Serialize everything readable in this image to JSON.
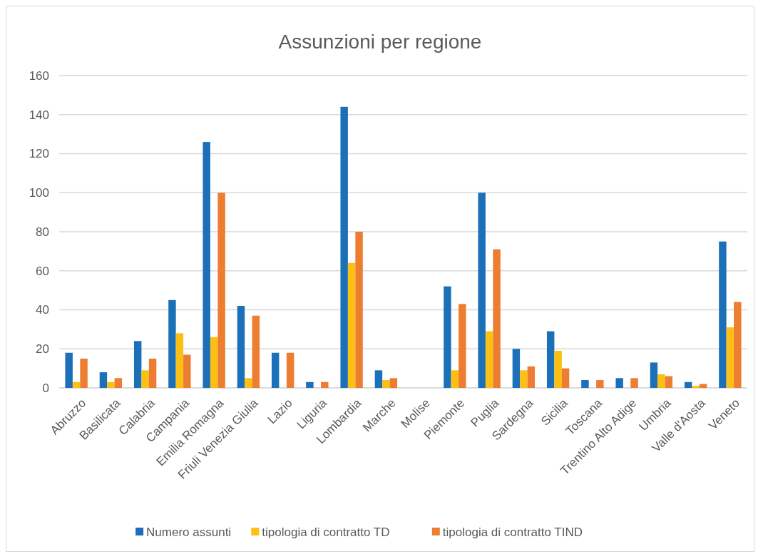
{
  "chart_data": {
    "type": "bar",
    "title": "Assunzioni per regione",
    "categories": [
      "Abruzzo",
      "Basilicata",
      "Calabria",
      "Campania",
      "Emilia Romagna",
      "Friuli Venezia Giulia",
      "Lazio",
      "Liguria",
      "Lombardia",
      "Marche",
      "Molise",
      "Piemonte",
      "Puglia",
      "Sardegna",
      "Sicilia",
      "Toscana",
      "Trentino Alto Adige",
      "Umbria",
      "Valle d'Aosta",
      "Veneto"
    ],
    "series": [
      {
        "name": "Numero assunti",
        "color": "#1c70b8",
        "values": [
          18,
          8,
          24,
          45,
          126,
          42,
          18,
          3,
          144,
          9,
          0,
          52,
          100,
          20,
          29,
          4,
          5,
          13,
          3,
          75
        ]
      },
      {
        "name": "tipologia di contratto TD",
        "color": "#fcbf14",
        "values": [
          3,
          3,
          9,
          28,
          26,
          5,
          0,
          0,
          64,
          4,
          0,
          9,
          29,
          9,
          19,
          0,
          0,
          7,
          1,
          31
        ]
      },
      {
        "name": "tipologia di contratto TIND",
        "color": "#ed7d31",
        "values": [
          15,
          5,
          15,
          17,
          100,
          37,
          18,
          3,
          80,
          5,
          0,
          43,
          71,
          11,
          10,
          4,
          5,
          6,
          2,
          44
        ]
      }
    ],
    "ylim": [
      0,
      160
    ],
    "yticks": [
      0,
      20,
      40,
      60,
      80,
      100,
      120,
      140,
      160
    ],
    "grid": "y",
    "legend": "bottom"
  }
}
